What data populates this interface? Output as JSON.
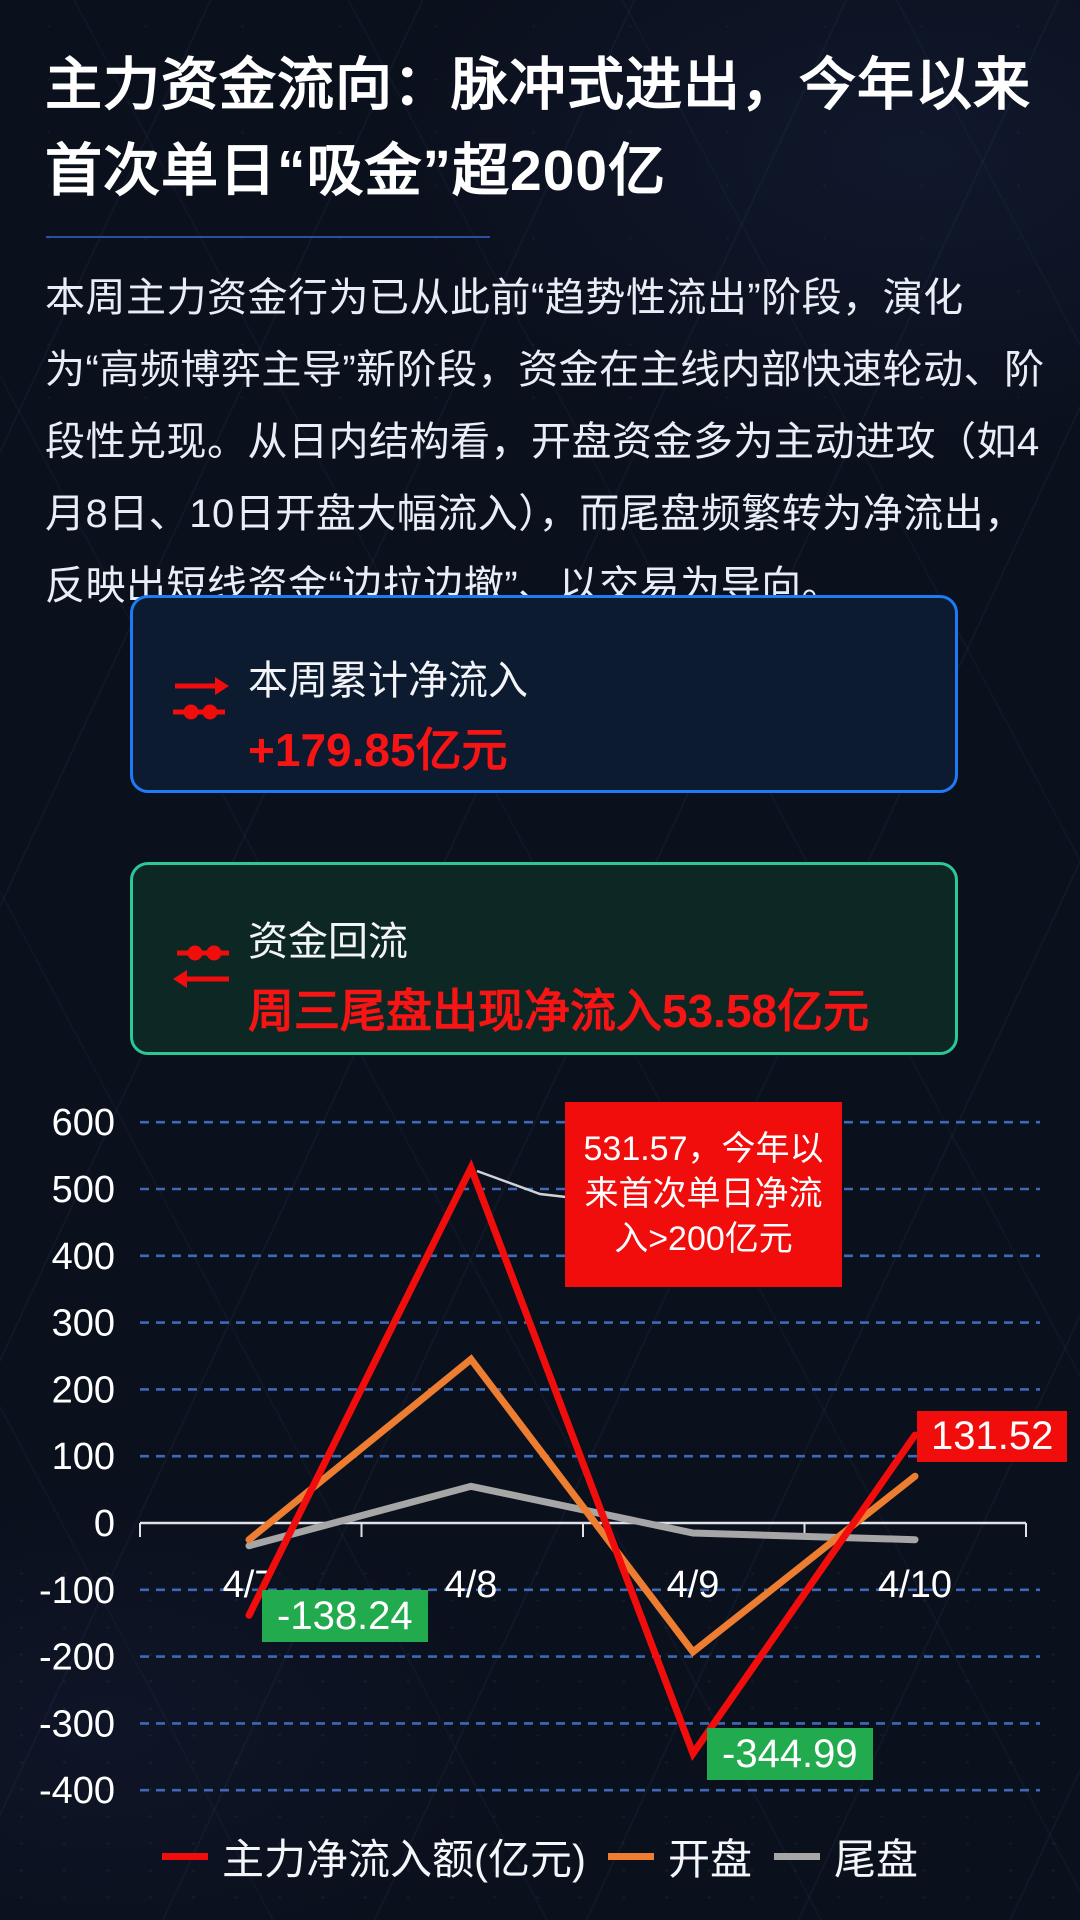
{
  "page": {
    "title": "主力资金流向：脉冲式进出，今年以来首次单日“吸金”超200亿",
    "paragraph": "本周主力资金行为已从此前“趋势性流出”阶段，演化为“高频博弈主导”新阶段，资金在主线内部快速轮动、阶段性兑现。从日内结构看，开盘资金多为主动进攻（如4月8日、10日开盘大幅流入），而尾盘频繁转为净流出，反映出短线资金“边拉边撤”、以交易为导向。"
  },
  "cards": [
    {
      "icon": "flow-out-arrow-icon",
      "title": "本周累计净流入",
      "value": "+179.85亿元",
      "accent_color": "#1f7bf5",
      "value_color": "#f71414"
    },
    {
      "icon": "flow-return-arrow-icon",
      "title": "资金回流",
      "value": "周三尾盘出现净流入53.58亿元",
      "accent_color": "#2cc796",
      "value_color": "#f71414"
    }
  ],
  "chart_data": {
    "type": "line",
    "categories": [
      "4/7",
      "4/8",
      "4/9",
      "4/10"
    ],
    "series": [
      {
        "name": "主力净流入额(亿元)",
        "color": "#f20d0d",
        "values": [
          -138.24,
          531.57,
          -344.99,
          131.52
        ]
      },
      {
        "name": "开盘",
        "color": "#ed7d31",
        "values": [
          -25,
          245,
          -193,
          70
        ]
      },
      {
        "name": "尾盘",
        "color": "#a6a6a6",
        "values": [
          -34,
          55,
          -15,
          -25
        ]
      }
    ],
    "ylim": [
      -400,
      600
    ],
    "ytick_step": 100,
    "grid": "dashed-horizontal",
    "gridline_color": "#3e68b8",
    "axis_color": "#dfe2e8",
    "legend_position": "bottom",
    "annotations": [
      {
        "text": "-138.24",
        "style": "green",
        "series": 0,
        "point": 0
      },
      {
        "text": "531.57，今年以\n来首次单日净流\n入>200亿元",
        "style": "red-callout",
        "series": 0,
        "point": 1
      },
      {
        "text": "-344.99",
        "style": "green",
        "series": 0,
        "point": 2
      },
      {
        "text": "131.52",
        "style": "red",
        "series": 0,
        "point": 3
      }
    ]
  }
}
